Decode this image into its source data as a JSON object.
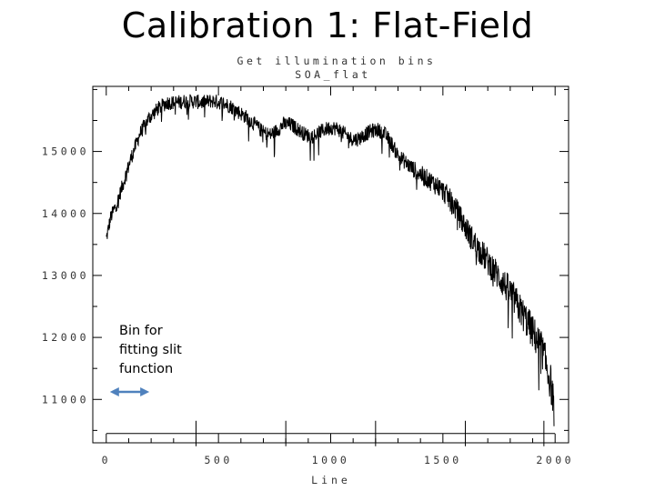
{
  "slide": {
    "title": "Calibration 1: Flat-Field"
  },
  "annotation": {
    "lines": [
      "Bin for",
      "fitting slit",
      "function"
    ],
    "arrow_color": "#4f81bd",
    "arrow_from_line": 0,
    "arrow_to_line": 200
  },
  "chart_data": {
    "type": "line",
    "title": "Get illumination bins",
    "subtitle": "SOA_flat",
    "xlabel": "Line",
    "ylabel": "",
    "xlim": [
      -60,
      2060
    ],
    "ylim": [
      10300,
      16050
    ],
    "xticks": [
      0,
      500,
      1000,
      1500,
      2000
    ],
    "xtick_labels": [
      "0",
      "500",
      "1000",
      "1500",
      "2000"
    ],
    "yticks": [
      11000,
      12000,
      13000,
      14000,
      15000
    ],
    "ytick_labels": [
      "11000",
      "12000",
      "13000",
      "14000",
      "15000"
    ],
    "grid": false,
    "line_color": "#000000",
    "baseline": {
      "y": 10450,
      "ticks_x": [
        400,
        800,
        1200,
        1600,
        1950
      ]
    },
    "series": [
      {
        "x": [
          0,
          20,
          50,
          80,
          110,
          150,
          190,
          230,
          270,
          310,
          350,
          390,
          430,
          470,
          510,
          550,
          590,
          630,
          670,
          700,
          730,
          760,
          790,
          820,
          850,
          880,
          910,
          940,
          970,
          1000,
          1030,
          1060,
          1090,
          1120,
          1150,
          1180,
          1210,
          1240,
          1270,
          1300,
          1330,
          1360,
          1400,
          1440,
          1480,
          1520,
          1560,
          1600,
          1640,
          1680,
          1720,
          1760,
          1800,
          1840,
          1880,
          1910,
          1940,
          1960,
          1980,
          1995
        ],
        "y": [
          13600,
          13950,
          14200,
          14550,
          14900,
          15300,
          15550,
          15700,
          15800,
          15800,
          15820,
          15820,
          15800,
          15830,
          15800,
          15750,
          15650,
          15550,
          15420,
          15320,
          15280,
          15350,
          15450,
          15450,
          15380,
          15300,
          15250,
          15300,
          15360,
          15400,
          15380,
          15300,
          15220,
          15210,
          15280,
          15340,
          15360,
          15300,
          15150,
          14950,
          14850,
          14750,
          14650,
          14550,
          14450,
          14300,
          14080,
          13800,
          13550,
          13350,
          13150,
          12950,
          12750,
          12500,
          12250,
          12050,
          11850,
          11600,
          11300,
          10950
        ],
        "noise": 120
      }
    ]
  }
}
